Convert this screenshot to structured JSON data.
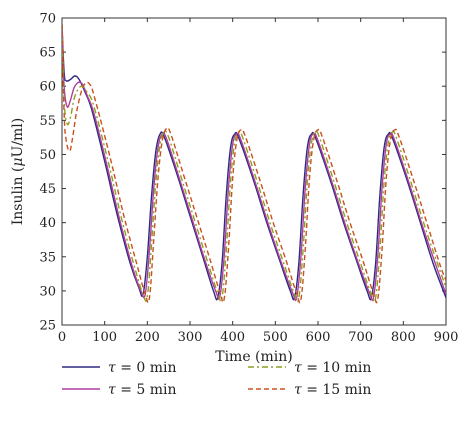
{
  "chart_data": {
    "type": "line",
    "xlabel": "Time (min)",
    "ylabel": "Insulin (μU/ml)",
    "ylabel_parts": {
      "prefix": "Insulin (",
      "mu": "μ",
      "suffix": "U/ml)"
    },
    "xlim": [
      0,
      900
    ],
    "ylim": [
      25,
      70
    ],
    "xticks": [
      0,
      100,
      200,
      300,
      400,
      500,
      600,
      700,
      800,
      900
    ],
    "yticks": [
      25,
      30,
      35,
      40,
      45,
      50,
      55,
      60,
      65,
      70
    ],
    "grid": false,
    "legend_position": "bottom",
    "series": [
      {
        "name": "τ = 0 min",
        "symbol": "τ",
        "value_text": " = 0 min",
        "color": "#2e2a7f",
        "dash": "solid",
        "x": [
          0,
          5,
          10,
          20,
          30,
          40,
          55,
          70,
          100,
          130,
          160,
          180,
          190,
          200,
          210,
          220,
          230,
          240,
          270,
          300,
          330,
          355,
          365,
          375,
          385,
          395,
          405,
          415,
          450,
          480,
          510,
          535,
          545,
          555,
          565,
          575,
          585,
          595,
          630,
          660,
          690,
          715,
          725,
          735,
          745,
          755,
          765,
          775,
          810,
          840,
          870,
          900
        ],
        "y": [
          69,
          62,
          60.8,
          61,
          61.5,
          61.0,
          59,
          56.5,
          49,
          41,
          34,
          30.5,
          29.5,
          35,
          44,
          50.5,
          53,
          52.5,
          47,
          41,
          35,
          30,
          29,
          34,
          44,
          51,
          53,
          52.3,
          46,
          40,
          34.5,
          30,
          29,
          34,
          44,
          51,
          53,
          52.3,
          46,
          40,
          34.5,
          30,
          29,
          34,
          44,
          51,
          53,
          52.3,
          46,
          40,
          34,
          29
        ]
      },
      {
        "name": "τ = 5 min",
        "symbol": "τ",
        "value_text": " = 5 min",
        "color": "#b03ea0",
        "dash": "solid",
        "x": [
          0,
          5,
          12,
          20,
          30,
          45,
          60,
          75,
          105,
          135,
          165,
          185,
          195,
          205,
          215,
          225,
          235,
          245,
          275,
          305,
          335,
          360,
          370,
          380,
          390,
          400,
          410,
          420,
          455,
          485,
          515,
          540,
          550,
          560,
          570,
          580,
          590,
          600,
          635,
          665,
          695,
          720,
          730,
          740,
          750,
          760,
          770,
          780,
          815,
          845,
          875,
          900
        ],
        "y": [
          69,
          60,
          57,
          58,
          60,
          60.5,
          58.5,
          56,
          48.5,
          40.5,
          33.5,
          30,
          29.5,
          36,
          45,
          51,
          53,
          52.3,
          46.5,
          40.5,
          34.5,
          30,
          29.2,
          35,
          45,
          51.5,
          53,
          52,
          45.5,
          39.5,
          34,
          29.8,
          29,
          35,
          45,
          51.5,
          53,
          52,
          45.5,
          39.5,
          34,
          29.8,
          29,
          35,
          45,
          51.5,
          53,
          52,
          45.5,
          39.5,
          34,
          29.5
        ]
      },
      {
        "name": "τ = 10 min",
        "symbol": "τ",
        "value_text": " = 10 min",
        "color": "#8ca020",
        "dash": "6,3,2,3",
        "x": [
          0,
          5,
          12,
          20,
          30,
          45,
          60,
          75,
          110,
          140,
          170,
          190,
          200,
          210,
          220,
          230,
          240,
          250,
          280,
          310,
          340,
          365,
          375,
          385,
          395,
          405,
          415,
          425,
          460,
          490,
          520,
          545,
          555,
          565,
          575,
          585,
          595,
          605,
          640,
          670,
          700,
          725,
          735,
          745,
          755,
          765,
          775,
          785,
          820,
          850,
          880,
          900
        ],
        "y": [
          69,
          58,
          54.5,
          55.5,
          58.5,
          60,
          59,
          57,
          48.5,
          40.5,
          33.5,
          29.5,
          29.2,
          37,
          46,
          51.5,
          53.3,
          52.5,
          46.5,
          40.5,
          34.5,
          29.7,
          29,
          36,
          46,
          51.8,
          53.3,
          52.2,
          45.5,
          39.5,
          34,
          29.5,
          29,
          36,
          46,
          51.8,
          53.3,
          52.2,
          45.5,
          39.5,
          34,
          29.5,
          29,
          36,
          46,
          51.8,
          53.3,
          52.2,
          45.5,
          39.5,
          34,
          30.5
        ]
      },
      {
        "name": "τ = 15 min",
        "symbol": "τ",
        "value_text": " = 15 min",
        "color": "#c8501e",
        "dash": "5,3",
        "x": [
          0,
          5,
          10,
          18,
          25,
          35,
          50,
          65,
          80,
          115,
          145,
          175,
          195,
          205,
          215,
          225,
          235,
          245,
          255,
          285,
          315,
          345,
          370,
          380,
          390,
          400,
          410,
          420,
          430,
          465,
          495,
          525,
          550,
          560,
          570,
          580,
          590,
          600,
          610,
          645,
          675,
          705,
          730,
          740,
          750,
          760,
          770,
          780,
          790,
          825,
          855,
          885,
          900
        ],
        "y": [
          69,
          56,
          52,
          50.5,
          52.5,
          56.5,
          60,
          60.3,
          57.5,
          49,
          41,
          34,
          29.5,
          29,
          37.5,
          46.5,
          52,
          53.8,
          53,
          47,
          41,
          35,
          29.8,
          28.8,
          36,
          46.5,
          52.2,
          53.6,
          52.6,
          46,
          40,
          34.5,
          29.6,
          28.8,
          36,
          46.5,
          52.2,
          53.6,
          52.6,
          46,
          40,
          34.5,
          29.6,
          28.8,
          36,
          46.5,
          52.2,
          53.6,
          52.6,
          46,
          40,
          34,
          31.5
        ]
      }
    ]
  }
}
